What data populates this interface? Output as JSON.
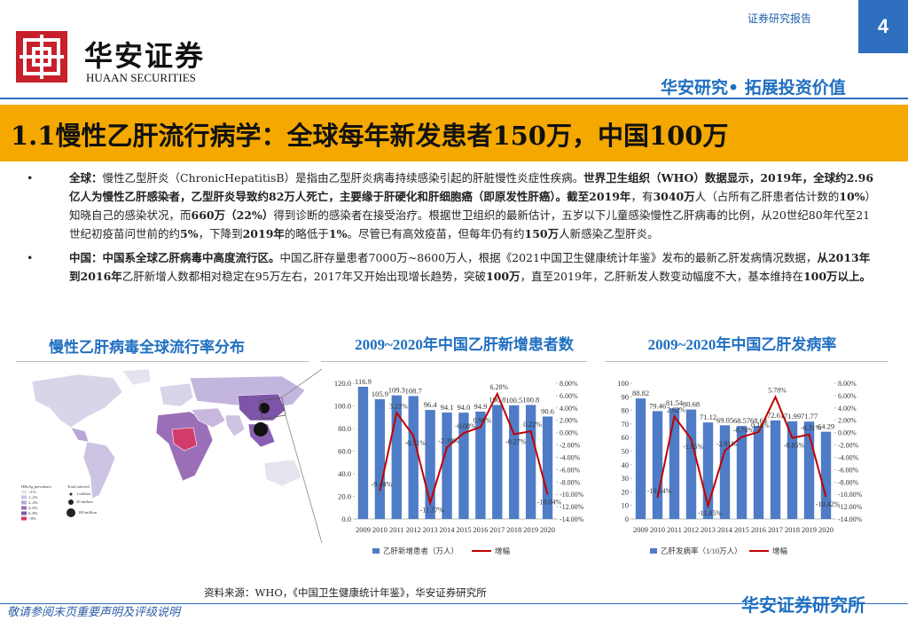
{
  "header": {
    "report_type": "证券研究报告",
    "page": "4",
    "logo_cn": "华安证券",
    "logo_en": "HUAAN SECURITIES",
    "slogan": "华安研究• 拓展投资价值"
  },
  "title": "1.1慢性乙肝流行病学：全球每年新发患者150万，中国100万",
  "bullets": [
    [
      "全球：",
      "慢性乙型肝炎（ChronicHepatitisB）是指由乙型肝炎病毒持续感染引起的肝脏慢性炎症性疾病。",
      "世界卫生组织（WHO）数据显示，2019年，全球约2.96亿人为慢性乙肝感染者，乙型肝炎导致约82万人死亡，主要缘于肝硬化和肝细胞癌（即原发性肝癌）。截至2019年",
      "，有",
      "3040万",
      "人（占所有乙肝患者估计数的",
      "10%",
      "）知晓自己的感染状况，而",
      "660万（22%）",
      "得到诊断的感染者在接受治疗。根据世卫组织的最新估计，五岁以下儿童感染慢性乙肝病毒的比例，从20世纪80年代至21世纪初疫苗问世前的约",
      "5%",
      "，下降到",
      "2019年",
      "的略低于",
      "1%",
      "。尽管已有高效疫苗，但每年仍有约",
      "150万",
      "人新感染乙型肝炎。"
    ],
    [
      "中国：中国系全球乙肝病毒中高度流行区。",
      "中国乙肝存量患者7000万~8600万人，根据《2021中国卫生健康统计年鉴》发布的最新乙肝发病情况数据，",
      "从2013年到2016年",
      "乙肝新增人数都相对稳定在95万左右，2017年又开始出现增长趋势，突破",
      "100万",
      "，直至2019年，乙肝新发人数变动幅度不大，基本维持在",
      "100万以上。"
    ]
  ],
  "map": {
    "title": "慢性乙肝病毒全球流行率分布",
    "legend_title": "HBsAg prevalence",
    "legend": [
      "<1%",
      "1–2%",
      "2–4%",
      "4–6%",
      "6–8%",
      ">8%"
    ],
    "size_title": "Total infected",
    "sizes": [
      "1 million",
      "20 million",
      "100 million"
    ]
  },
  "chart_data": [
    {
      "type": "combo",
      "title": "2009~2020年中国乙肝新增患者数",
      "categories": [
        "2009",
        "2010",
        "2011",
        "2012",
        "2013",
        "2014",
        "2015",
        "2016",
        "2017",
        "2018",
        "2019",
        "2020"
      ],
      "series": [
        {
          "name": "乙肝新增患者（万人）",
          "color": "#4f7cc6",
          "kind": "bar",
          "values": [
            116.9,
            105.9,
            109.3,
            108.7,
            96.4,
            94.1,
            94.0,
            94.9,
            100.8,
            100.5,
            100.8,
            90.6
          ],
          "value_labels": [
            "116.9",
            "105.9",
            "109.3",
            "108.7",
            "96.4",
            "94.1",
            "94.0",
            "94.9",
            "100.8",
            "100.5",
            "100.8",
            "90.6"
          ]
        },
        {
          "name": "增幅",
          "color": "#c00000",
          "kind": "line",
          "axis": "y2",
          "values": [
            null,
            -9.44,
            3.21,
            -0.51,
            -11.37,
            -2.39,
            -0.08,
            0.9,
            6.28,
            -0.27,
            0.22,
            -10.04
          ],
          "value_labels": [
            null,
            "-9.44%",
            "3.21%",
            "-0.51%",
            "-11.37%",
            "-2.39%",
            "-0.08%",
            "0.90%",
            "6.28%",
            "-0.27%",
            "0.22%",
            "-10.04%"
          ]
        }
      ],
      "ylim": [
        0,
        120
      ],
      "yticks": [
        {
          "value": 0,
          "label": "0.0"
        },
        {
          "value": 20,
          "label": "20.0"
        },
        {
          "value": 40,
          "label": "40.0"
        },
        {
          "value": 60,
          "label": "60.0"
        },
        {
          "value": 80,
          "label": "80.0"
        },
        {
          "value": 100,
          "label": "100.0"
        },
        {
          "value": 120,
          "label": "120.0"
        }
      ],
      "y2lim": [
        -14,
        8
      ],
      "y2ticks": [
        {
          "value": -14,
          "label": "-14.00%"
        },
        {
          "value": -12,
          "label": "-12.00%"
        },
        {
          "value": -10,
          "label": "-10.00%"
        },
        {
          "value": -8,
          "label": "-8.00%"
        },
        {
          "value": -6,
          "label": "-6.00%"
        },
        {
          "value": -4,
          "label": "-4.00%"
        },
        {
          "value": -2,
          "label": "-2.00%"
        },
        {
          "value": 0,
          "label": "0.00%"
        },
        {
          "value": 2,
          "label": "2.00%"
        },
        {
          "value": 4,
          "label": "4.00%"
        },
        {
          "value": 6,
          "label": "6.00%"
        },
        {
          "value": 8,
          "label": "8.00%"
        }
      ],
      "grid": false,
      "legend": "bottom"
    },
    {
      "type": "combo",
      "title": "2009~2020年中国乙肝发病率",
      "categories": [
        "2009",
        "2010",
        "2011",
        "2012",
        "2013",
        "2014",
        "2015",
        "2016",
        "2017",
        "2018",
        "2019",
        "2020"
      ],
      "series": [
        {
          "name": "乙肝发病率（1/10万人）",
          "color": "#4f7cc6",
          "kind": "bar",
          "values": [
            88.82,
            79.46,
            81.54,
            80.68,
            71.12,
            69.05,
            68.57,
            68.64,
            72.61,
            71.99,
            71.77,
            64.29
          ]
        },
        {
          "name": "增幅",
          "color": "#c00000",
          "kind": "line",
          "axis": "y2",
          "values": [
            null,
            -10.54,
            2.62,
            -1.05,
            -11.85,
            -2.91,
            -0.7,
            0.1,
            5.78,
            -0.85,
            -0.31,
            -10.42
          ],
          "value_labels": [
            null,
            "-10.54%",
            "2.62%",
            "-1.05%",
            "-11.85%",
            "-2.91%",
            "-0.70%",
            "0.10%",
            "5.78%",
            "-0.85%",
            "-0.31%",
            "-10.42%"
          ]
        }
      ],
      "ylim": [
        0,
        100
      ],
      "yticks": [
        0,
        10,
        20,
        30,
        40,
        50,
        60,
        70,
        80,
        90,
        100
      ],
      "y2lim": [
        -14,
        8
      ],
      "y2ticks": [
        {
          "value": -14,
          "label": "-14.00%"
        },
        {
          "value": -12,
          "label": "-12.00%"
        },
        {
          "value": -10,
          "label": "-10.00%"
        },
        {
          "value": -8,
          "label": "-8.00%"
        },
        {
          "value": -6,
          "label": "-6.00%"
        },
        {
          "value": -4,
          "label": "-4.00%"
        },
        {
          "value": -2,
          "label": "-2.00%"
        },
        {
          "value": 0,
          "label": "0.00%"
        },
        {
          "value": 2,
          "label": "2.00%"
        },
        {
          "value": 4,
          "label": "4.00%"
        },
        {
          "value": 6,
          "label": "6.00%"
        },
        {
          "value": 8,
          "label": "8.00%"
        }
      ],
      "grid": false,
      "legend": "bottom"
    }
  ],
  "source": "资料来源：WHO，《中国卫生健康统计年鉴》，华安证券研究所",
  "footer": {
    "disclaimer": "敬请参阅末页重要声明及评级说明",
    "brand": "华安证券研究所"
  }
}
